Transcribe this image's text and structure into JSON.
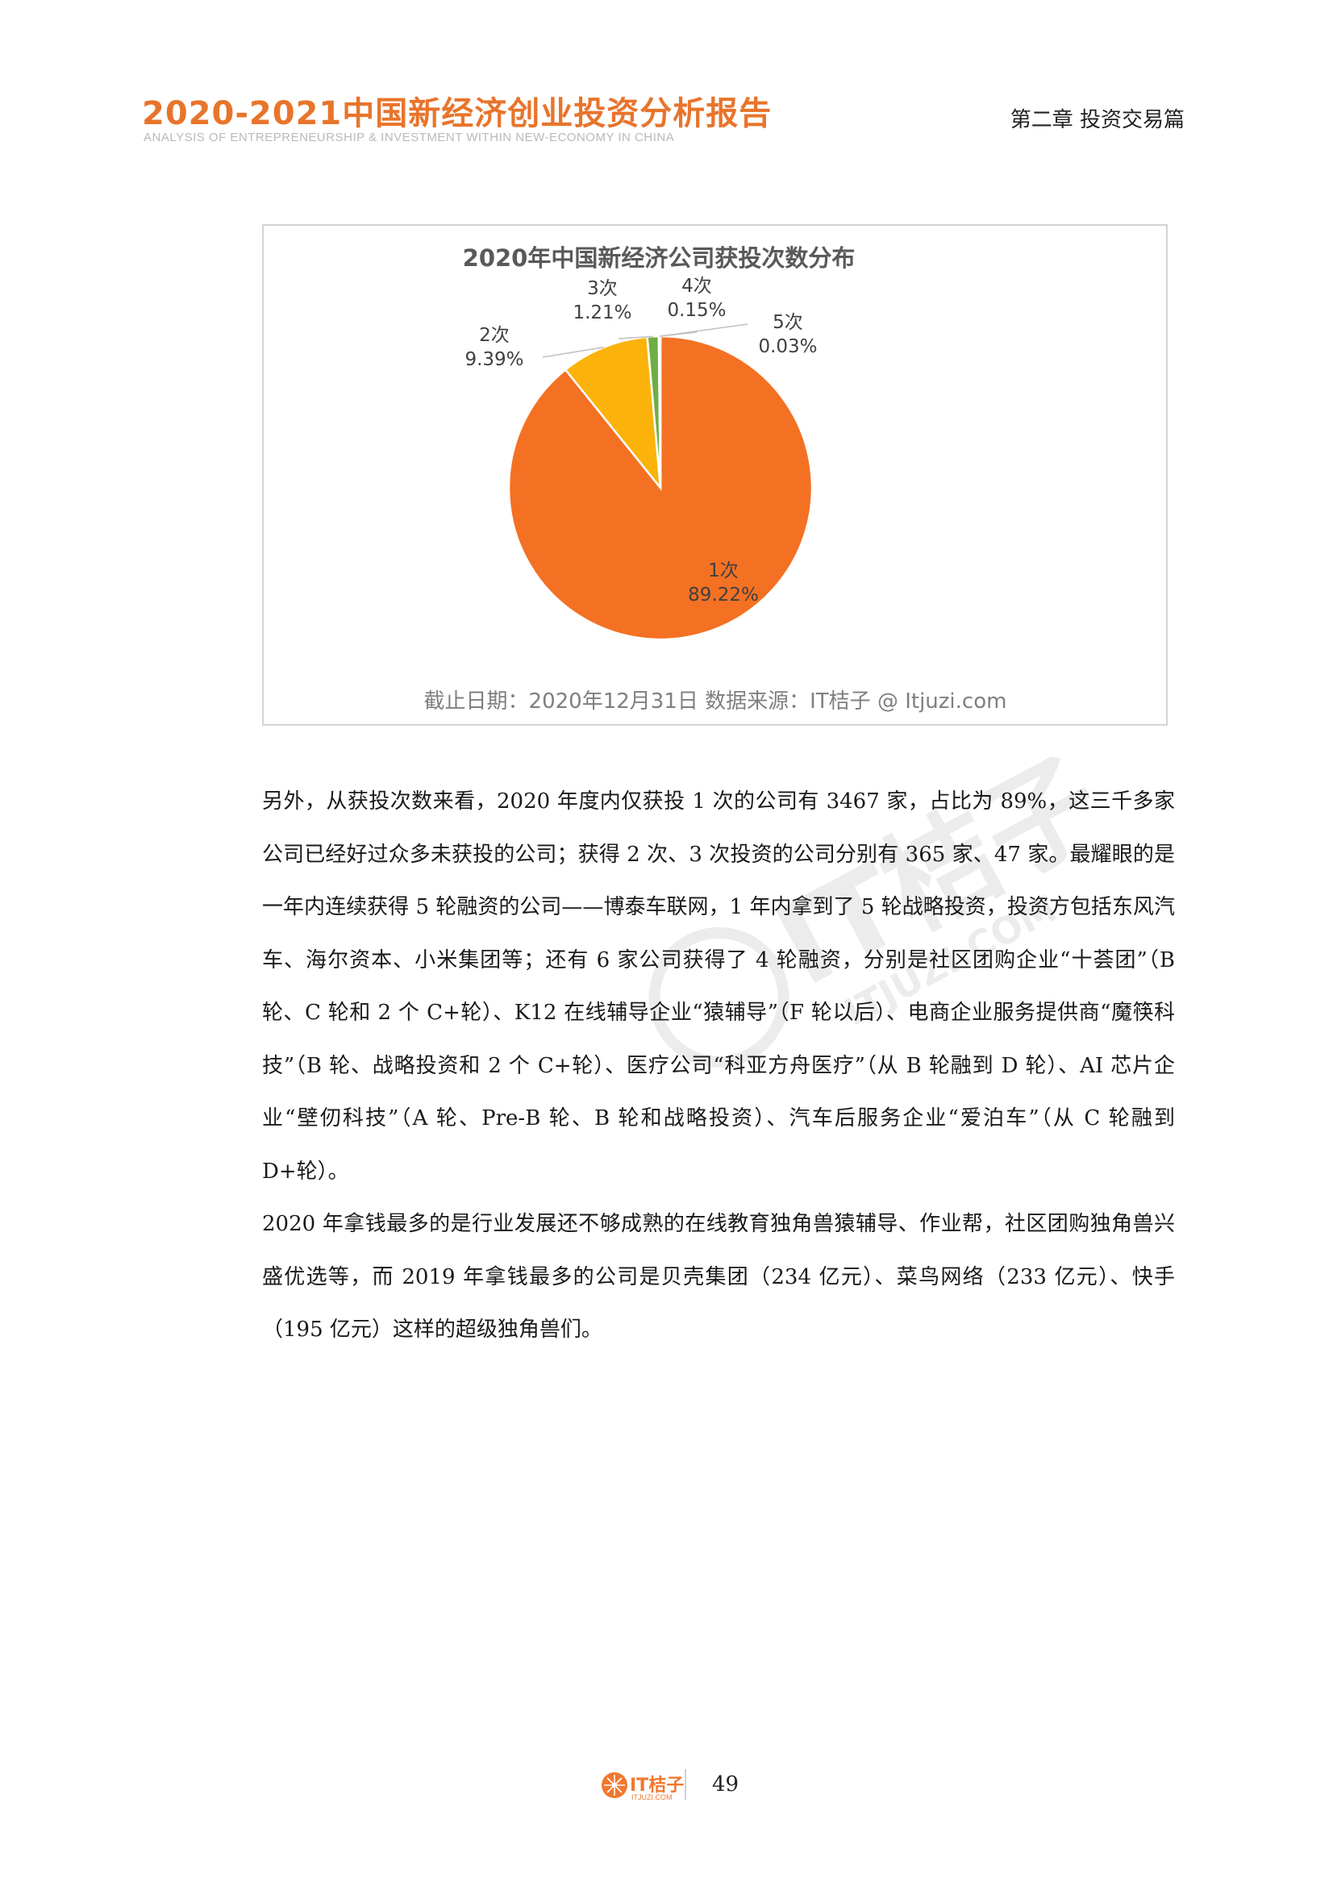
{
  "header": {
    "title": "2020-2021中国新经济创业投资分析报告",
    "subtitle": "ANALYSIS OF ENTREPRENEURSHIP & INVESTMENT  WITHIN NEW-ECONOMY  IN CHINA",
    "chapter": "第二章  投资交易篇"
  },
  "chart_data": {
    "type": "pie",
    "title": "2020年中国新经济公司获投次数分布",
    "categories": [
      "1次",
      "2次",
      "3次",
      "4次",
      "5次"
    ],
    "values": [
      89.22,
      9.39,
      1.21,
      0.15,
      0.03
    ],
    "value_labels": [
      "89.22%",
      "9.39%",
      "1.21%",
      "0.15%",
      "0.03%"
    ],
    "colors": [
      "#f47123",
      "#fbb30c",
      "#70ad47",
      "#4472c4",
      "#a5a5a5"
    ],
    "footnote": "截止日期：2020年12月31日    数据来源：IT桔子 @ Itjuzi.com"
  },
  "body": {
    "paragraphs": [
      "另外，从获投次数来看，2020 年度内仅获投 1 次的公司有 3467 家，占比为 89%，这三千多家公司已经好过众多未获投的公司；获得 2 次、3 次投资的公司分别有 365 家、47 家。最耀眼的是一年内连续获得 5 轮融资的公司——博泰车联网，1 年内拿到了 5 轮战略投资，投资方包括东风汽车、海尔资本、小米集团等；还有 6 家公司获得了 4 轮融资，分别是社区团购企业“十荟团”（B 轮、C 轮和 2 个 C+轮）、K12 在线辅导企业“猿辅导”（F 轮以后）、电商企业服务提供商“魔筷科技”（B 轮、战略投资和 2 个 C+轮）、医疗公司“科亚方舟医疗”（从 B 轮融到 D 轮）、AI 芯片企业“壁仞科技”（A 轮、Pre-B 轮、B 轮和战略投资）、汽车后服务企业“爱泊车”（从 C 轮融到 D+轮）。",
      "2020 年拿钱最多的是行业发展还不够成熟的在线教育独角兽猿辅导、作业帮，社区团购独角兽兴盛优选等，而 2019 年拿钱最多的公司是贝壳集团（234 亿元）、菜鸟网络（233 亿元）、快手（195 亿元）这样的超级独角兽们。"
    ]
  },
  "watermark": {
    "text": "IT桔子",
    "url": "ITJUZI.COM"
  },
  "footer": {
    "brand": "IT桔子",
    "url": "ITJUZI.COM",
    "page_number": "49",
    "logo_icon": "orange-slice-icon"
  }
}
